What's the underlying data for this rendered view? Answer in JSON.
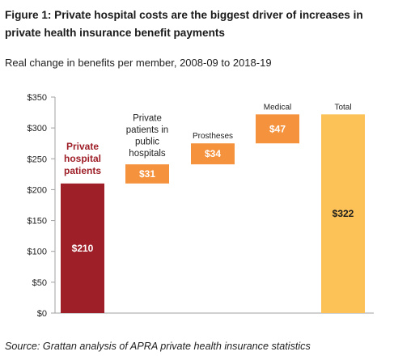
{
  "title": "Figure 1: Private hospital costs are the biggest driver of increases in private health insurance benefit payments",
  "subtitle": "Real change in benefits per member, 2008-09 to 2018-19",
  "source": "Source: Grattan analysis of APRA private health insurance statistics",
  "colors": {
    "private_hospital": "#9e1f28",
    "increment": "#f5923e",
    "total": "#fcc257",
    "axis": "#a0a0a0"
  },
  "chart_data": {
    "type": "bar",
    "subtype": "waterfall",
    "ylim": [
      0,
      350
    ],
    "yticks": [
      0,
      50,
      100,
      150,
      200,
      250,
      300,
      350
    ],
    "ytick_labels": [
      "$0",
      "$50",
      "$100",
      "$150",
      "$200",
      "$250",
      "$300",
      "$350"
    ],
    "grid": false,
    "categories": [
      [
        "Private",
        "hospital",
        "patients"
      ],
      [
        "Private",
        "patients in",
        "public",
        "hospitals"
      ],
      [
        "Prostheses"
      ],
      [
        "Medical"
      ],
      [
        "Total"
      ]
    ],
    "values": [
      210,
      31,
      34,
      47,
      322
    ],
    "bases": [
      0,
      210,
      241,
      275,
      0
    ],
    "data_labels": [
      "$210",
      "$31",
      "$34",
      "$47",
      "$322"
    ]
  }
}
